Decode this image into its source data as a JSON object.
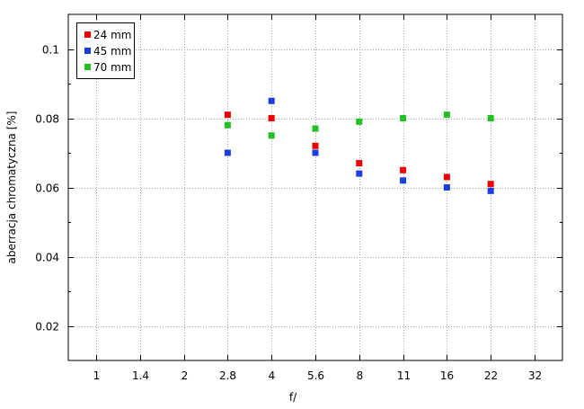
{
  "chart_data": {
    "type": "scatter",
    "title": "",
    "xlabel": "f/",
    "ylabel": "aberracja chromatyczna [%]",
    "x_categories": [
      "1",
      "1.4",
      "2",
      "2.8",
      "4",
      "5.6",
      "8",
      "11",
      "16",
      "22",
      "32"
    ],
    "ylim": [
      0.01,
      0.11
    ],
    "yticks": [
      0.02,
      0.04,
      0.06,
      0.08,
      0.1
    ],
    "ytick_labels": [
      "0.02",
      "0.04",
      "0.06",
      "0.08",
      "0.1"
    ],
    "grid": true,
    "legend_position": "top-left",
    "series": [
      {
        "name": "24 mm",
        "color": "#ee0000",
        "points": [
          [
            "2.8",
            0.081
          ],
          [
            "4",
            0.08
          ],
          [
            "5.6",
            0.072
          ],
          [
            "8",
            0.067
          ],
          [
            "11",
            0.065
          ],
          [
            "16",
            0.063
          ],
          [
            "22",
            0.061
          ]
        ]
      },
      {
        "name": "45 mm",
        "color": "#1a3ee0",
        "points": [
          [
            "2.8",
            0.07
          ],
          [
            "4",
            0.085
          ],
          [
            "5.6",
            0.07
          ],
          [
            "8",
            0.064
          ],
          [
            "11",
            0.062
          ],
          [
            "16",
            0.06
          ],
          [
            "22",
            0.059
          ]
        ]
      },
      {
        "name": "70 mm",
        "color": "#22c022",
        "points": [
          [
            "2.8",
            0.078
          ],
          [
            "4",
            0.075
          ],
          [
            "5.6",
            0.077
          ],
          [
            "8",
            0.079
          ],
          [
            "11",
            0.08
          ],
          [
            "16",
            0.081
          ],
          [
            "22",
            0.08
          ]
        ]
      }
    ]
  }
}
